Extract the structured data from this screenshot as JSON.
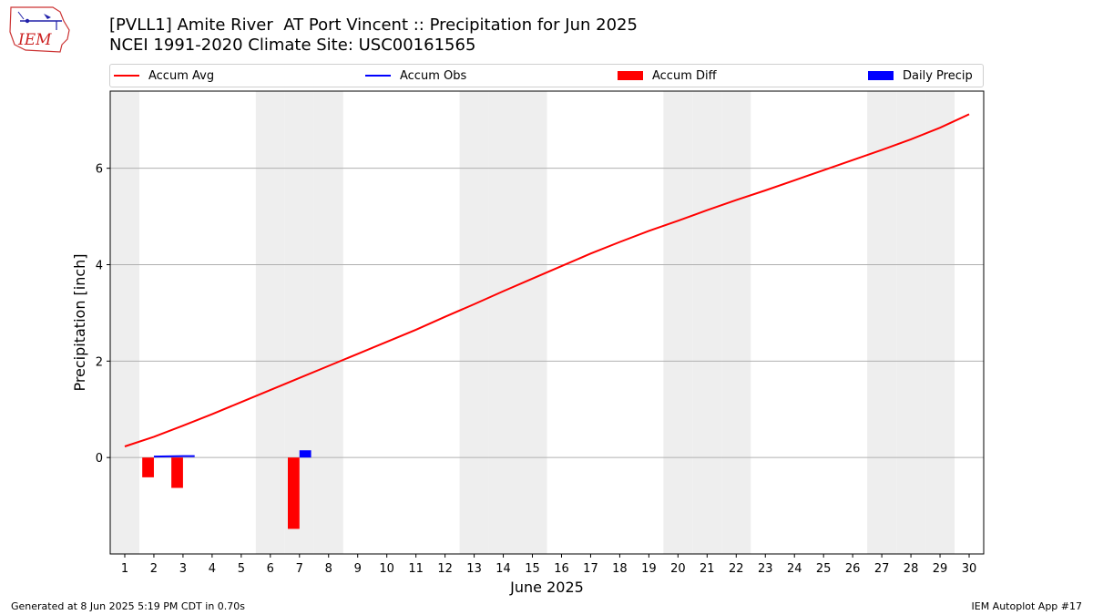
{
  "header": {
    "title_line1": "[PVLL1] Amite River  AT Port Vincent :: Precipitation for Jun 2025",
    "title_line2": "NCEI 1991-2020 Climate Site: USC00161565",
    "logo_text": "IEM"
  },
  "footer": {
    "generated": "Generated at 8 Jun 2025 5:19 PM CDT in 0.70s",
    "app": "IEM Autoplot App #17"
  },
  "colors": {
    "avg": "#ff0000",
    "obs": "#0000ff",
    "diff": "#ff0000",
    "daily": "#0000ff",
    "weekend": "#eeeeee",
    "grid": "#b0b0b0"
  },
  "legend": [
    {
      "label": "Accum Avg",
      "kind": "line",
      "color": "#ff0000"
    },
    {
      "label": "Accum Obs",
      "kind": "line",
      "color": "#0000ff"
    },
    {
      "label": "Accum Diff",
      "kind": "box",
      "color": "#ff0000"
    },
    {
      "label": "Daily Precip",
      "kind": "box",
      "color": "#0000ff"
    }
  ],
  "chart_data": {
    "type": "line",
    "xlabel": "June 2025",
    "ylabel": "Precipitation [inch]",
    "xlim": [
      0.5,
      30.5
    ],
    "ylim": [
      -2.0,
      7.6
    ],
    "yticks": [
      0,
      2,
      4,
      6
    ],
    "grid": true,
    "legend_position": "top",
    "x": [
      1,
      2,
      3,
      4,
      5,
      6,
      7,
      8,
      9,
      10,
      11,
      12,
      13,
      14,
      15,
      16,
      17,
      18,
      19,
      20,
      21,
      22,
      23,
      24,
      25,
      26,
      27,
      28,
      29,
      30
    ],
    "shaded_days": [
      1,
      6,
      7,
      8,
      13,
      14,
      15,
      20,
      21,
      22,
      27,
      28,
      29
    ],
    "series": [
      {
        "name": "Accum Avg",
        "type": "line",
        "values": [
          0.23,
          0.43,
          0.66,
          0.9,
          1.15,
          1.4,
          1.65,
          1.9,
          2.15,
          2.4,
          2.65,
          2.92,
          3.18,
          3.45,
          3.71,
          3.97,
          4.23,
          4.47,
          4.7,
          4.91,
          5.13,
          5.34,
          5.54,
          5.75,
          5.96,
          6.17,
          6.38,
          6.6,
          6.84,
          7.12
        ]
      },
      {
        "name": "Accum Obs",
        "type": "line",
        "x": [
          2,
          3,
          3.4
        ],
        "values": [
          0.02,
          0.03,
          0.03
        ]
      },
      {
        "name": "Accum Diff",
        "type": "bar",
        "x": [
          2,
          3,
          7
        ],
        "values": [
          -0.41,
          -0.63,
          -1.48
        ]
      },
      {
        "name": "Daily Precip",
        "type": "bar",
        "x": [
          7
        ],
        "values": [
          0.15
        ]
      }
    ]
  }
}
